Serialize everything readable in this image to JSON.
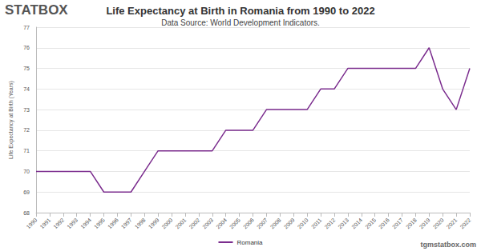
{
  "chart_data": {
    "type": "line",
    "title": "Life Expectancy at Birth in Romania from 1990 to 2022",
    "subtitle": "Data Source: World Development Indicators.",
    "y_label": "Life Expectancy at Birth (Years)",
    "annotations": [
      "STATBOX",
      "tgmstatbox.com"
    ],
    "categories": [
      "1990",
      "1991",
      "1992",
      "1993",
      "1994",
      "1995",
      "1996",
      "1997",
      "1998",
      "1999",
      "2000",
      "2001",
      "2002",
      "2003",
      "2004",
      "2005",
      "2006",
      "2007",
      "2008",
      "2009",
      "2010",
      "2011",
      "2012",
      "2013",
      "2014",
      "2015",
      "2016",
      "2017",
      "2018",
      "2019",
      "2020",
      "2021",
      "2022"
    ],
    "series": [
      {
        "name": "Romania",
        "color": "#7b2d8e",
        "marker": "none",
        "values": [
          70,
          70,
          70,
          70,
          70,
          69,
          69,
          69,
          70,
          71,
          71,
          71,
          71,
          71,
          72,
          72,
          72,
          73,
          73,
          73,
          73,
          74,
          74,
          75,
          75,
          75,
          75,
          75,
          75,
          76,
          74,
          73,
          75
        ]
      }
    ],
    "ylim": [
      68,
      77
    ],
    "yticks": [
      68,
      69,
      70,
      71,
      72,
      73,
      74,
      75,
      76,
      77
    ],
    "grid": true,
    "legend": "bottom"
  }
}
